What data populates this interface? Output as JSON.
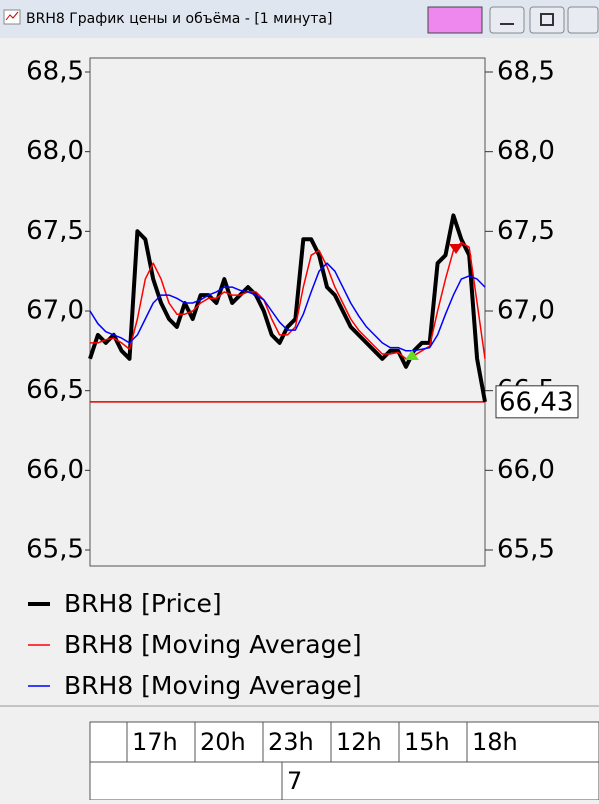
{
  "window": {
    "title": "BRH8 График цены и объёма - [1 минута]"
  },
  "chart_data": {
    "type": "line",
    "ylim": [
      65.5,
      68.5
    ],
    "yticks": [
      {
        "value": 65.5,
        "label": "65,5"
      },
      {
        "value": 66.0,
        "label": "66,0"
      },
      {
        "value": 66.5,
        "label": "66,5"
      },
      {
        "value": 67.0,
        "label": "67,0"
      },
      {
        "value": 67.5,
        "label": "67,5"
      },
      {
        "value": 68.0,
        "label": "68,0"
      },
      {
        "value": 68.5,
        "label": "68,5"
      }
    ],
    "last_price": {
      "value": 66.43,
      "label": "66,43",
      "color": "#e00000"
    },
    "x_labels": [
      "17h",
      "20h",
      "23h",
      "12h",
      "15h",
      "18h"
    ],
    "date_label": "7",
    "series": [
      {
        "name": "BRH8 [Price]",
        "color": "#000000",
        "values": [
          66.7,
          66.85,
          66.8,
          66.85,
          66.75,
          66.7,
          67.5,
          67.45,
          67.2,
          67.05,
          66.95,
          66.9,
          67.05,
          66.95,
          67.1,
          67.1,
          67.05,
          67.2,
          67.05,
          67.1,
          67.15,
          67.1,
          67.0,
          66.85,
          66.8,
          66.9,
          66.95,
          67.45,
          67.45,
          67.35,
          67.15,
          67.1,
          67.0,
          66.9,
          66.85,
          66.8,
          66.75,
          66.7,
          66.75,
          66.75,
          66.65,
          66.75,
          66.8,
          66.8,
          67.3,
          67.35,
          67.6,
          67.45,
          67.35,
          66.7,
          66.43
        ]
      },
      {
        "name": "BRH8 [Moving Average]",
        "color": "#ff0000",
        "values": [
          66.8,
          66.8,
          66.82,
          66.83,
          66.8,
          66.76,
          66.95,
          67.2,
          67.3,
          67.2,
          67.05,
          66.98,
          66.98,
          67.0,
          67.05,
          67.08,
          67.08,
          67.12,
          67.1,
          67.1,
          67.12,
          67.12,
          67.07,
          66.95,
          66.85,
          66.85,
          66.9,
          67.15,
          67.35,
          67.38,
          67.28,
          67.15,
          67.05,
          66.95,
          66.88,
          66.83,
          66.78,
          66.73,
          66.73,
          66.74,
          66.7,
          66.72,
          66.75,
          66.78,
          67.0,
          67.2,
          67.38,
          67.43,
          67.4,
          67.05,
          66.7
        ]
      },
      {
        "name": "BRH8 [Moving Average]",
        "color": "#0000ff",
        "values": [
          67.0,
          66.92,
          66.87,
          66.85,
          66.83,
          66.8,
          66.85,
          66.95,
          67.05,
          67.1,
          67.1,
          67.08,
          67.05,
          67.05,
          67.07,
          67.1,
          67.12,
          67.15,
          67.15,
          67.13,
          67.12,
          67.1,
          67.07,
          67.0,
          66.93,
          66.88,
          66.88,
          66.98,
          67.12,
          67.25,
          67.3,
          67.25,
          67.15,
          67.05,
          66.97,
          66.9,
          66.85,
          66.8,
          66.77,
          66.77,
          66.75,
          66.75,
          66.76,
          66.77,
          66.85,
          66.98,
          67.1,
          67.2,
          67.22,
          67.2,
          67.15
        ]
      }
    ]
  }
}
